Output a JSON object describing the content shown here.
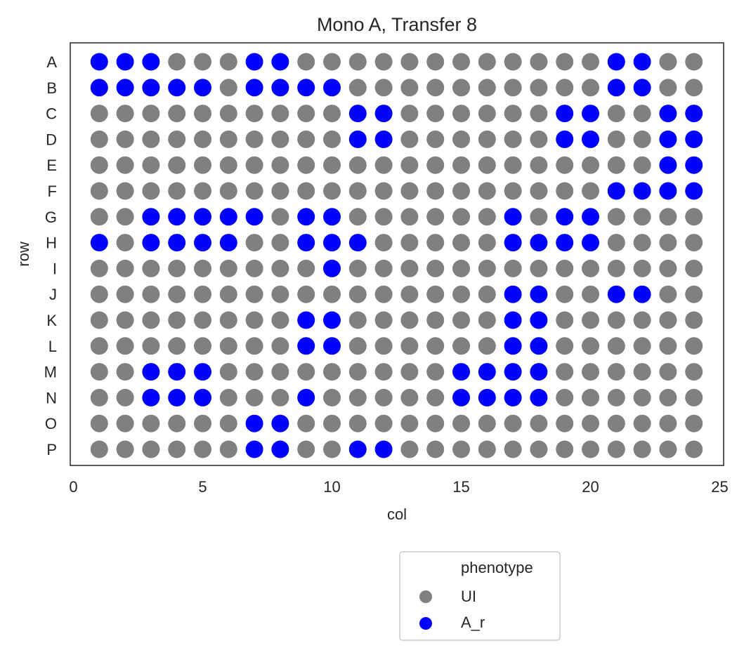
{
  "chart_data": {
    "type": "scatter",
    "title": "Mono A, Transfer 8",
    "xlabel": "col",
    "ylabel": "row",
    "xlim": [
      0,
      25
    ],
    "x_ticks": [
      0,
      5,
      10,
      15,
      20,
      25
    ],
    "rows": [
      "A",
      "B",
      "C",
      "D",
      "E",
      "F",
      "G",
      "H",
      "I",
      "J",
      "K",
      "L",
      "M",
      "N",
      "O",
      "P"
    ],
    "cols": [
      1,
      2,
      3,
      4,
      5,
      6,
      7,
      8,
      9,
      10,
      11,
      12,
      13,
      14,
      15,
      16,
      17,
      18,
      19,
      20,
      21,
      22,
      23,
      24
    ],
    "grid": false,
    "legend": {
      "title": "phenotype",
      "placement": "below",
      "entries": [
        {
          "label": "UI",
          "color": "#808080"
        },
        {
          "label": "A_r",
          "color": "#0000ff"
        }
      ]
    },
    "series": [
      {
        "name": "UI",
        "color": "#808080",
        "points": "all wells not listed in A_r"
      },
      {
        "name": "A_r",
        "color": "#0000ff",
        "points": {
          "A": [
            1,
            2,
            3,
            7,
            8,
            21,
            22
          ],
          "B": [
            1,
            2,
            3,
            4,
            5,
            7,
            8,
            9,
            10,
            21,
            22
          ],
          "C": [
            11,
            12,
            19,
            20,
            23,
            24
          ],
          "D": [
            11,
            12,
            19,
            20,
            23,
            24
          ],
          "E": [
            23,
            24
          ],
          "F": [
            21,
            22,
            23,
            24
          ],
          "G": [
            3,
            4,
            5,
            6,
            7,
            9,
            10,
            17,
            19,
            20
          ],
          "H": [
            1,
            3,
            4,
            5,
            6,
            9,
            10,
            11,
            17,
            18,
            19,
            20
          ],
          "I": [
            10
          ],
          "J": [
            17,
            18,
            21,
            22
          ],
          "K": [
            9,
            10,
            17,
            18
          ],
          "L": [
            9,
            10,
            17,
            18
          ],
          "M": [
            3,
            4,
            5,
            15,
            16,
            17,
            18
          ],
          "N": [
            3,
            4,
            5,
            9,
            15,
            16,
            17,
            18
          ],
          "O": [
            7,
            8
          ],
          "P": [
            7,
            8,
            11,
            12
          ]
        }
      }
    ]
  }
}
